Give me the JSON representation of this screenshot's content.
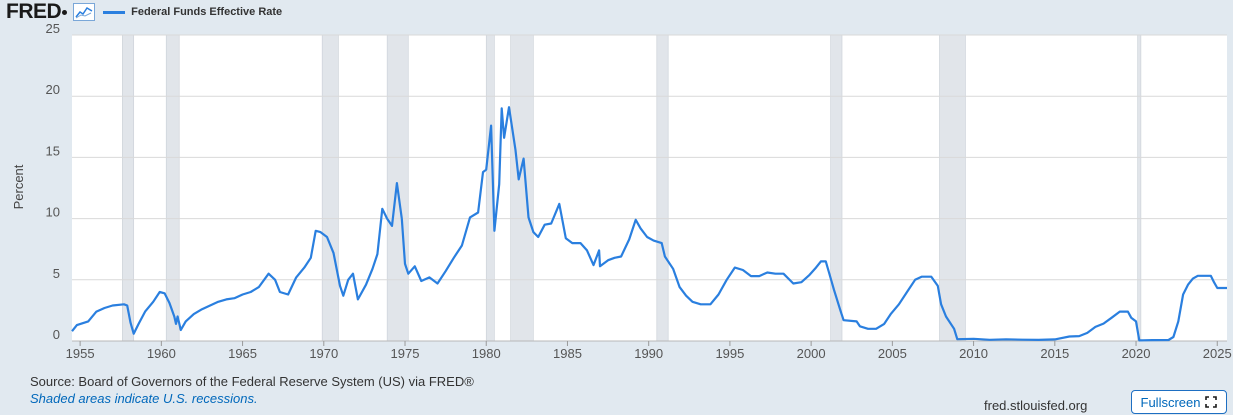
{
  "header": {
    "logo": "FRED",
    "graph_icon": "line-graph-icon",
    "legend_label": "Federal Funds Effective Rate"
  },
  "footer": {
    "source": "Source: Board of Governors of the Federal Reserve System (US) via FRED®",
    "note": "Shaded areas indicate U.S. recessions.",
    "site": "fred.stlouisfed.org",
    "fullscreen_label": "Fullscreen",
    "fullscreen_icon": "fullscreen-icon"
  },
  "colors": {
    "series": "#2a7fdf",
    "recession": "#e1e5ea",
    "background": "#e1e9f0",
    "plot": "#ffffff",
    "grid": "#d9d9d9"
  },
  "chart_data": {
    "type": "line",
    "title": "",
    "xlabel": "",
    "ylabel": "Percent",
    "xlim": [
      1954.5,
      2025.6
    ],
    "ylim": [
      0,
      25
    ],
    "x_ticks": [
      1955,
      1960,
      1965,
      1970,
      1975,
      1980,
      1985,
      1990,
      1995,
      2000,
      2005,
      2010,
      2015,
      2020,
      2025
    ],
    "y_ticks": [
      0,
      5,
      10,
      15,
      20,
      25
    ],
    "grid": true,
    "legend": "top-left",
    "recessions": [
      [
        1957.6,
        1958.3
      ],
      [
        1960.3,
        1961.1
      ],
      [
        1969.9,
        1970.9
      ],
      [
        1973.9,
        1975.2
      ],
      [
        1980.0,
        1980.5
      ],
      [
        1981.5,
        1982.9
      ],
      [
        1990.5,
        1991.2
      ],
      [
        2001.2,
        2001.9
      ],
      [
        2007.9,
        2009.5
      ],
      [
        2020.1,
        2020.3
      ]
    ],
    "series": [
      {
        "name": "Federal Funds Effective Rate",
        "points": [
          [
            1954.5,
            0.8
          ],
          [
            1954.8,
            1.3
          ],
          [
            1955.5,
            1.6
          ],
          [
            1956.0,
            2.4
          ],
          [
            1956.5,
            2.7
          ],
          [
            1957.0,
            2.9
          ],
          [
            1957.7,
            3.0
          ],
          [
            1957.9,
            2.9
          ],
          [
            1958.1,
            1.5
          ],
          [
            1958.3,
            0.6
          ],
          [
            1958.6,
            1.4
          ],
          [
            1959.0,
            2.4
          ],
          [
            1959.5,
            3.2
          ],
          [
            1959.9,
            4.0
          ],
          [
            1960.2,
            3.9
          ],
          [
            1960.5,
            3.1
          ],
          [
            1960.8,
            2.0
          ],
          [
            1960.9,
            1.4
          ],
          [
            1961.0,
            2.0
          ],
          [
            1961.2,
            0.9
          ],
          [
            1961.5,
            1.6
          ],
          [
            1962.0,
            2.2
          ],
          [
            1962.5,
            2.6
          ],
          [
            1963.0,
            2.9
          ],
          [
            1963.5,
            3.2
          ],
          [
            1964.0,
            3.4
          ],
          [
            1964.5,
            3.5
          ],
          [
            1965.0,
            3.8
          ],
          [
            1965.5,
            4.0
          ],
          [
            1966.0,
            4.4
          ],
          [
            1966.6,
            5.5
          ],
          [
            1967.0,
            5.0
          ],
          [
            1967.3,
            4.0
          ],
          [
            1967.8,
            3.8
          ],
          [
            1968.3,
            5.2
          ],
          [
            1968.8,
            6.0
          ],
          [
            1969.2,
            6.8
          ],
          [
            1969.5,
            9.0
          ],
          [
            1969.8,
            8.9
          ],
          [
            1970.2,
            8.5
          ],
          [
            1970.6,
            7.2
          ],
          [
            1971.0,
            4.5
          ],
          [
            1971.2,
            3.7
          ],
          [
            1971.5,
            5.0
          ],
          [
            1971.8,
            5.5
          ],
          [
            1972.1,
            3.4
          ],
          [
            1972.6,
            4.6
          ],
          [
            1973.0,
            5.9
          ],
          [
            1973.3,
            7.1
          ],
          [
            1973.6,
            10.8
          ],
          [
            1973.9,
            10.0
          ],
          [
            1974.2,
            9.4
          ],
          [
            1974.5,
            12.9
          ],
          [
            1974.8,
            10.0
          ],
          [
            1975.0,
            6.3
          ],
          [
            1975.2,
            5.5
          ],
          [
            1975.6,
            6.1
          ],
          [
            1976.0,
            4.9
          ],
          [
            1976.5,
            5.2
          ],
          [
            1977.0,
            4.7
          ],
          [
            1977.5,
            5.7
          ],
          [
            1978.0,
            6.8
          ],
          [
            1978.5,
            7.8
          ],
          [
            1979.0,
            10.1
          ],
          [
            1979.5,
            10.5
          ],
          [
            1979.8,
            13.8
          ],
          [
            1980.0,
            14.0
          ],
          [
            1980.3,
            17.6
          ],
          [
            1980.5,
            9.0
          ],
          [
            1980.8,
            12.8
          ],
          [
            1980.95,
            19.0
          ],
          [
            1981.1,
            16.6
          ],
          [
            1981.4,
            19.1
          ],
          [
            1981.8,
            15.6
          ],
          [
            1982.0,
            13.2
          ],
          [
            1982.3,
            14.9
          ],
          [
            1982.6,
            10.1
          ],
          [
            1982.9,
            8.9
          ],
          [
            1983.2,
            8.5
          ],
          [
            1983.6,
            9.5
          ],
          [
            1984.0,
            9.6
          ],
          [
            1984.5,
            11.2
          ],
          [
            1984.9,
            8.4
          ],
          [
            1985.3,
            8.0
          ],
          [
            1985.8,
            8.0
          ],
          [
            1986.2,
            7.4
          ],
          [
            1986.6,
            6.2
          ],
          [
            1986.95,
            7.4
          ],
          [
            1987.0,
            6.1
          ],
          [
            1987.5,
            6.6
          ],
          [
            1987.9,
            6.8
          ],
          [
            1988.3,
            6.9
          ],
          [
            1988.8,
            8.3
          ],
          [
            1989.2,
            9.9
          ],
          [
            1989.5,
            9.2
          ],
          [
            1989.9,
            8.5
          ],
          [
            1990.3,
            8.2
          ],
          [
            1990.8,
            8.0
          ],
          [
            1991.0,
            6.9
          ],
          [
            1991.5,
            5.9
          ],
          [
            1991.9,
            4.4
          ],
          [
            1992.3,
            3.7
          ],
          [
            1992.7,
            3.2
          ],
          [
            1993.2,
            3.0
          ],
          [
            1993.8,
            3.0
          ],
          [
            1994.3,
            3.8
          ],
          [
            1994.8,
            5.0
          ],
          [
            1995.3,
            6.0
          ],
          [
            1995.8,
            5.8
          ],
          [
            1996.3,
            5.3
          ],
          [
            1996.8,
            5.3
          ],
          [
            1997.3,
            5.6
          ],
          [
            1997.8,
            5.5
          ],
          [
            1998.3,
            5.5
          ],
          [
            1998.9,
            4.7
          ],
          [
            1999.4,
            4.8
          ],
          [
            1999.9,
            5.4
          ],
          [
            2000.3,
            6.0
          ],
          [
            2000.6,
            6.5
          ],
          [
            2000.9,
            6.5
          ],
          [
            2001.1,
            5.6
          ],
          [
            2001.4,
            4.2
          ],
          [
            2001.8,
            2.5
          ],
          [
            2002.0,
            1.7
          ],
          [
            2002.8,
            1.6
          ],
          [
            2003.0,
            1.2
          ],
          [
            2003.5,
            1.0
          ],
          [
            2004.0,
            1.0
          ],
          [
            2004.5,
            1.4
          ],
          [
            2004.9,
            2.2
          ],
          [
            2005.4,
            3.0
          ],
          [
            2005.9,
            4.0
          ],
          [
            2006.4,
            5.0
          ],
          [
            2006.8,
            5.25
          ],
          [
            2007.4,
            5.25
          ],
          [
            2007.8,
            4.5
          ],
          [
            2008.0,
            3.0
          ],
          [
            2008.3,
            2.0
          ],
          [
            2008.8,
            1.0
          ],
          [
            2009.0,
            0.15
          ],
          [
            2010.0,
            0.18
          ],
          [
            2011.0,
            0.1
          ],
          [
            2012.0,
            0.14
          ],
          [
            2013.0,
            0.11
          ],
          [
            2014.0,
            0.09
          ],
          [
            2015.0,
            0.13
          ],
          [
            2015.9,
            0.37
          ],
          [
            2016.5,
            0.4
          ],
          [
            2017.0,
            0.66
          ],
          [
            2017.5,
            1.15
          ],
          [
            2018.0,
            1.42
          ],
          [
            2018.5,
            1.9
          ],
          [
            2019.0,
            2.4
          ],
          [
            2019.5,
            2.4
          ],
          [
            2019.7,
            1.9
          ],
          [
            2020.0,
            1.6
          ],
          [
            2020.2,
            0.05
          ],
          [
            2021.0,
            0.07
          ],
          [
            2022.0,
            0.08
          ],
          [
            2022.3,
            0.33
          ],
          [
            2022.6,
            1.6
          ],
          [
            2022.9,
            3.8
          ],
          [
            2023.2,
            4.6
          ],
          [
            2023.5,
            5.1
          ],
          [
            2023.8,
            5.33
          ],
          [
            2024.6,
            5.33
          ],
          [
            2024.8,
            4.8
          ],
          [
            2025.0,
            4.33
          ],
          [
            2025.6,
            4.33
          ]
        ]
      }
    ]
  }
}
